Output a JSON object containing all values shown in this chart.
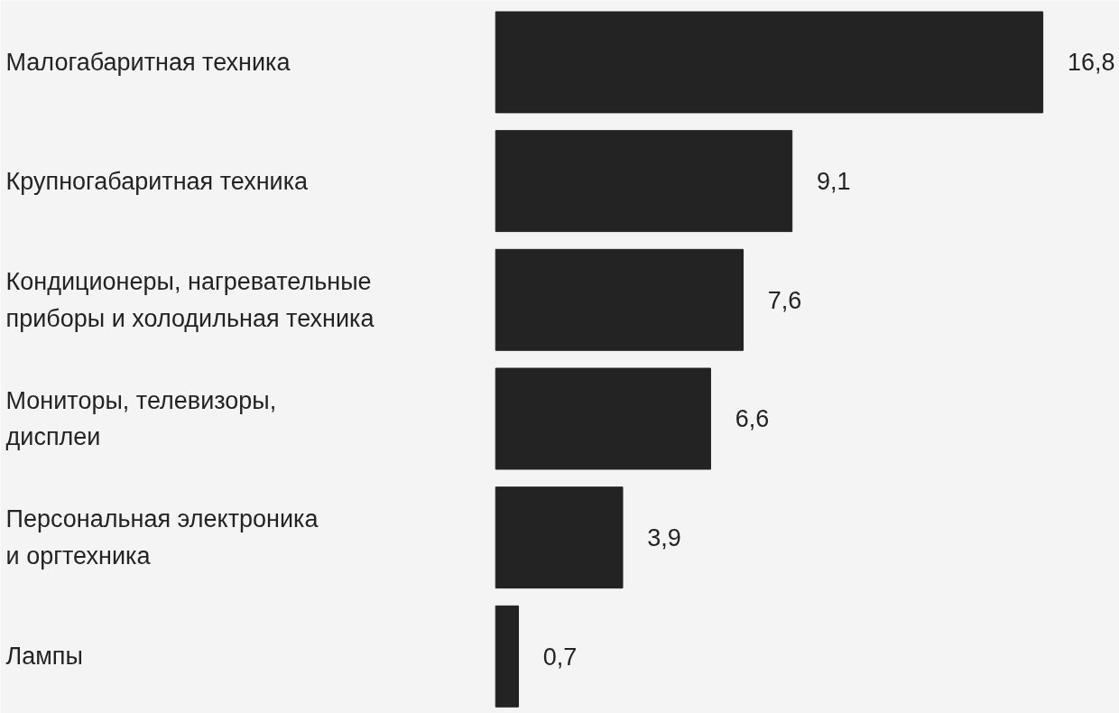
{
  "chart_data": {
    "type": "bar",
    "orientation": "horizontal",
    "categories": [
      "Малогабаритная техника",
      "Крупногабаритная техника",
      "Кондиционеры, нагревательные\nприборы и холодильная техника",
      "Мониторы, телевизоры,\nдисплеи",
      "Персональная электроника\nи оргтехника",
      "Лампы"
    ],
    "values": [
      16.8,
      9.1,
      7.6,
      6.6,
      3.9,
      0.7
    ],
    "value_labels": [
      "16,8",
      "9,1",
      "7,6",
      "6,6",
      "3,9",
      "0,7"
    ],
    "color": "#232323",
    "tick_labels": false
  }
}
